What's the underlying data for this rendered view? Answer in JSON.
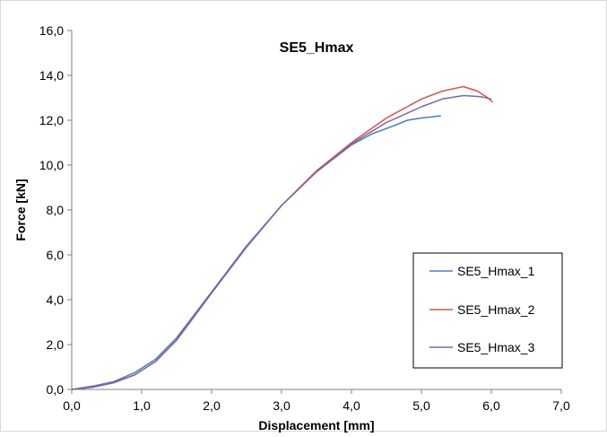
{
  "chart_data": {
    "type": "line",
    "title": "SE5_Hmax",
    "xlabel": "Displacement [mm]",
    "ylabel": "Force [kN]",
    "xlim": [
      0,
      7
    ],
    "ylim": [
      0,
      16
    ],
    "xticks": [
      "0,0",
      "1,0",
      "2,0",
      "3,0",
      "4,0",
      "5,0",
      "6,0",
      "7,0"
    ],
    "yticks": [
      "0,0",
      "2,0",
      "4,0",
      "6,0",
      "8,0",
      "10,0",
      "12,0",
      "14,0",
      "16,0"
    ],
    "grid": false,
    "legend_position": "bottom-right",
    "series": [
      {
        "name": "SE5_Hmax_1",
        "color": "#4a7ebb",
        "x": [
          0.0,
          0.3,
          0.6,
          0.9,
          1.2,
          1.5,
          2.0,
          2.5,
          3.0,
          3.5,
          4.0,
          4.3,
          4.6,
          4.8,
          5.0,
          5.15,
          5.28
        ],
        "y": [
          0.0,
          0.15,
          0.35,
          0.75,
          1.35,
          2.3,
          4.35,
          6.4,
          8.2,
          9.7,
          10.9,
          11.4,
          11.75,
          12.0,
          12.1,
          12.15,
          12.2
        ]
      },
      {
        "name": "SE5_Hmax_2",
        "color": "#d9534f",
        "x": [
          0.0,
          0.3,
          0.6,
          0.9,
          1.2,
          1.5,
          2.0,
          2.5,
          3.0,
          3.5,
          4.0,
          4.5,
          5.0,
          5.3,
          5.6,
          5.8,
          5.95,
          6.02
        ],
        "y": [
          0.0,
          0.1,
          0.3,
          0.65,
          1.25,
          2.2,
          4.3,
          6.35,
          8.2,
          9.75,
          11.0,
          12.1,
          12.95,
          13.3,
          13.5,
          13.3,
          13.0,
          12.8
        ]
      },
      {
        "name": "SE5_Hmax_3",
        "color": "#8064a2",
        "x": [
          0.0,
          0.3,
          0.6,
          0.9,
          1.2,
          1.5,
          2.0,
          2.5,
          3.0,
          3.5,
          4.0,
          4.5,
          5.0,
          5.3,
          5.6,
          5.85,
          6.0
        ],
        "y": [
          0.0,
          0.1,
          0.3,
          0.65,
          1.25,
          2.2,
          4.3,
          6.35,
          8.2,
          9.7,
          10.95,
          11.9,
          12.6,
          12.95,
          13.1,
          13.05,
          12.95
        ]
      }
    ]
  }
}
